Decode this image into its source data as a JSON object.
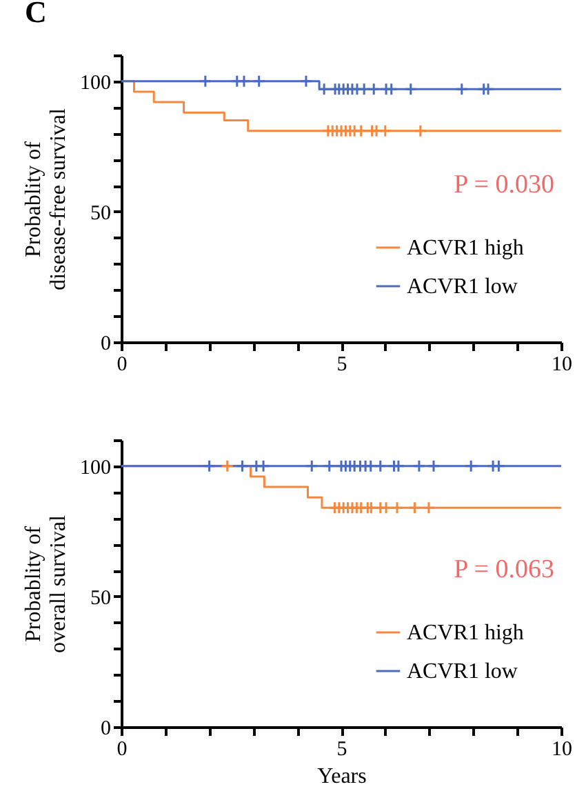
{
  "chart_data": [
    {
      "type": "step",
      "title": "C",
      "ylabel": "Probablity of\ndisease-free survival",
      "xlim": [
        0,
        10
      ],
      "ylim": [
        0,
        110
      ],
      "xticks": [
        0,
        {
          "value": 1,
          "label": null
        },
        {
          "value": 2,
          "label": null
        },
        {
          "value": 3,
          "label": null
        },
        {
          "value": 4,
          "label": null
        },
        5,
        {
          "value": 6,
          "label": null
        },
        {
          "value": 7,
          "label": null
        },
        {
          "value": 8,
          "label": null
        },
        {
          "value": 9,
          "label": null
        },
        10
      ],
      "yticks": [
        0,
        {
          "value": 10,
          "label": null
        },
        {
          "value": 20,
          "label": null
        },
        {
          "value": 30,
          "label": null
        },
        {
          "value": 40,
          "label": null
        },
        50,
        {
          "value": 60,
          "label": null
        },
        {
          "value": 70,
          "label": null
        },
        {
          "value": 80,
          "label": null
        },
        {
          "value": 90,
          "label": null
        },
        100,
        {
          "value": 110,
          "label": null
        }
      ],
      "legend": "bottom right",
      "annotations": [
        "P = 0.030"
      ],
      "series": [
        {
          "name": "ACVR1 high",
          "color": "#f5873f",
          "x": [
            0,
            0.29,
            0.74,
            1.42,
            2.34,
            2.88,
            10
          ],
          "values": [
            100,
            96,
            92,
            88,
            85,
            81,
            81
          ]
        },
        {
          "name": "ACVR1 low",
          "color": "#4a6bbf",
          "x": [
            0,
            4.5,
            10
          ],
          "values": [
            100,
            97,
            97
          ]
        },
        {
          "type": "scatter",
          "marker": "cross",
          "color": "#f5873f",
          "x": [
            4.7,
            4.8,
            4.9,
            5.0,
            5.1,
            5.2,
            5.3,
            5.45,
            5.7,
            5.8,
            6.0,
            6.8
          ],
          "values": [
            81,
            81,
            81,
            81,
            81,
            81,
            81,
            81,
            81,
            81,
            81,
            81
          ]
        },
        {
          "type": "scatter",
          "marker": "cross",
          "color": "#4a6bbf",
          "x": [
            1.91,
            2.63,
            2.79,
            3.13,
            4.2,
            4.61,
            4.86,
            4.95,
            5.05,
            5.15,
            5.25,
            5.36,
            5.52,
            5.74,
            6.02,
            6.14,
            6.58,
            7.74,
            8.24,
            8.34
          ],
          "values": [
            100,
            100,
            100,
            100,
            100,
            97,
            97,
            97,
            97,
            97,
            97,
            97,
            97,
            97,
            97,
            97,
            97,
            97,
            97,
            97
          ]
        }
      ]
    },
    {
      "type": "step",
      "ylabel": "Probablity of\noverall survival",
      "xlabel": "Years",
      "xlim": [
        0,
        10
      ],
      "ylim": [
        0,
        110
      ],
      "xticks": [
        0,
        {
          "value": 1,
          "label": null
        },
        {
          "value": 2,
          "label": null
        },
        {
          "value": 3,
          "label": null
        },
        {
          "value": 4,
          "label": null
        },
        5,
        {
          "value": 6,
          "label": null
        },
        {
          "value": 7,
          "label": null
        },
        {
          "value": 8,
          "label": null
        },
        {
          "value": 9,
          "label": null
        },
        10
      ],
      "yticks": [
        0,
        {
          "value": 10,
          "label": null
        },
        {
          "value": 20,
          "label": null
        },
        {
          "value": 30,
          "label": null
        },
        {
          "value": 40,
          "label": null
        },
        50,
        {
          "value": 60,
          "label": null
        },
        {
          "value": 70,
          "label": null
        },
        {
          "value": 80,
          "label": null
        },
        {
          "value": 90,
          "label": null
        },
        100,
        {
          "value": 110,
          "label": null
        }
      ],
      "legend": "bottom right",
      "annotations": [
        "P = 0.063"
      ],
      "series": [
        {
          "name": "ACVR1 high",
          "color": "#f5873f",
          "x": [
            0,
            2.94,
            3.25,
            4.24,
            4.56,
            10
          ],
          "values": [
            100,
            96,
            92,
            88,
            84,
            84
          ]
        },
        {
          "name": "ACVR1 low",
          "color": "#4a6bbf",
          "x": [
            0,
            10
          ],
          "values": [
            100,
            100
          ]
        },
        {
          "type": "scatter",
          "marker": "cross",
          "color": "#f5873f",
          "x": [
            2.41,
            4.85,
            4.95,
            5.05,
            5.15,
            5.25,
            5.35,
            5.45,
            5.6,
            5.68,
            5.89,
            6.02,
            6.27,
            6.67,
            6.99
          ],
          "values": [
            100,
            84,
            84,
            84,
            84,
            84,
            84,
            84,
            84,
            84,
            84,
            84,
            84,
            84,
            84
          ]
        },
        {
          "type": "scatter",
          "marker": "cross",
          "color": "#4a6bbf",
          "x": [
            2.0,
            2.75,
            3.07,
            3.23,
            4.33,
            4.73,
            5.0,
            5.1,
            5.2,
            5.3,
            5.43,
            5.55,
            5.67,
            5.89,
            6.2,
            6.3,
            6.77,
            7.1,
            7.95,
            8.45,
            8.58
          ],
          "values": [
            100,
            100,
            100,
            100,
            100,
            100,
            100,
            100,
            100,
            100,
            100,
            100,
            100,
            100,
            100,
            100,
            100,
            100,
            100,
            100,
            100
          ]
        }
      ]
    }
  ]
}
